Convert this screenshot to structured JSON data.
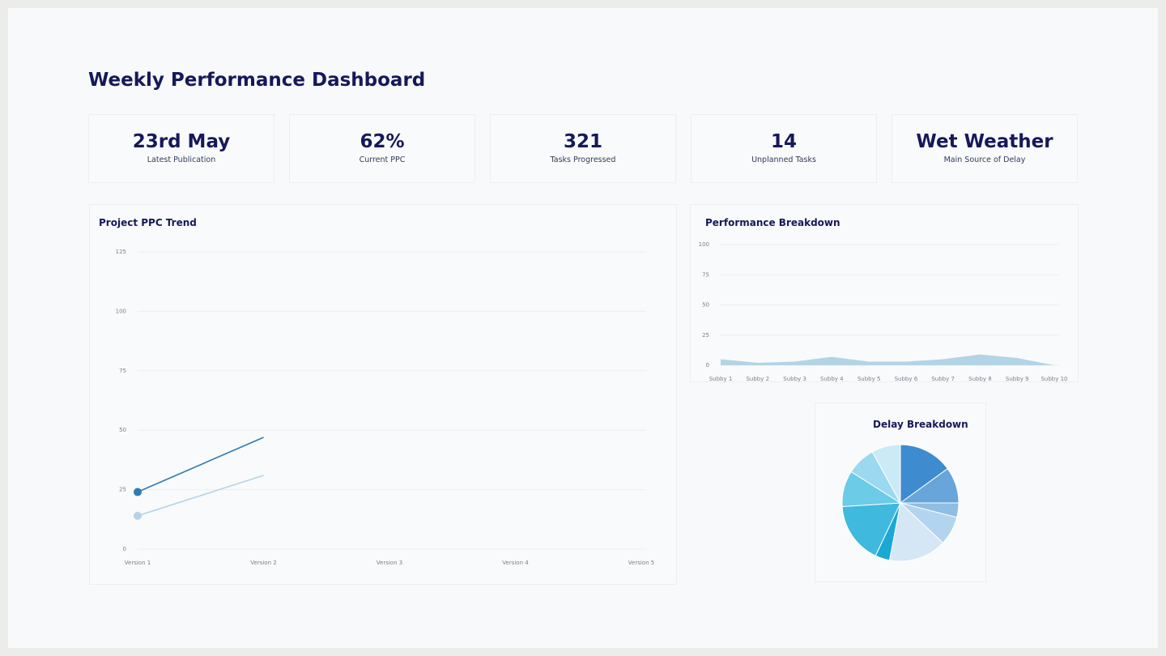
{
  "header": {
    "title": "Weekly Performance Dashboard"
  },
  "kpis": [
    {
      "value": "23rd May",
      "label": "Latest Publication"
    },
    {
      "value": "62%",
      "label": "Current PPC"
    },
    {
      "value": "321",
      "label": "Tasks Progressed"
    },
    {
      "value": "14",
      "label": "Unplanned Tasks"
    },
    {
      "value": "Wet Weather",
      "label": "Main Source of Delay"
    }
  ],
  "chart_data": [
    {
      "type": "line",
      "title": "Project PPC Trend",
      "categories": [
        "Version 1",
        "Version 2",
        "Version 3",
        "Version 4",
        "Version 5"
      ],
      "series": [
        {
          "color": "#2f7bb5",
          "values": [
            24,
            47,
            null,
            null,
            null
          ]
        },
        {
          "color": "#b5d3e6",
          "values": [
            14,
            31,
            null,
            null,
            null
          ]
        }
      ],
      "ylim": [
        0,
        125
      ],
      "yticks": [
        0,
        25,
        50,
        75,
        100,
        125
      ],
      "grid": true
    },
    {
      "type": "area",
      "title": "Performance Breakdown",
      "categories": [
        "Subby 1",
        "Subby 2",
        "Subby 3",
        "Subby 4",
        "Subby 5",
        "Subby 6",
        "Subby 7",
        "Subby 8",
        "Subby 9",
        "Subby 10"
      ],
      "values": [
        5,
        2,
        3,
        7,
        3,
        3,
        5,
        9,
        6,
        0
      ],
      "color": "#b3d4e6",
      "ylim": [
        0,
        100
      ],
      "yticks": [
        0,
        25,
        50,
        75,
        100
      ],
      "grid": true
    },
    {
      "type": "pie",
      "title": "Delay Breakdown",
      "values": [
        15,
        10,
        4,
        8,
        16,
        4,
        17,
        10,
        8,
        8
      ],
      "colors": [
        "#3f8bd0",
        "#67a5da",
        "#8fbde4",
        "#b3d4ee",
        "#d5e6f5",
        "#1aa8d4",
        "#3fb9dd",
        "#6ccbe6",
        "#9ad9ef",
        "#cbeaf6"
      ]
    }
  ]
}
